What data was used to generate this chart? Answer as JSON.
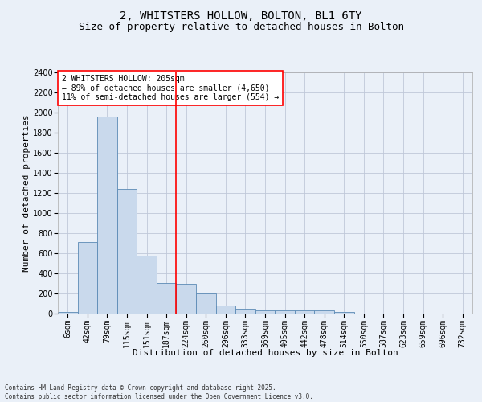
{
  "title1": "2, WHITSTERS HOLLOW, BOLTON, BL1 6TY",
  "title2": "Size of property relative to detached houses in Bolton",
  "xlabel": "Distribution of detached houses by size in Bolton",
  "ylabel": "Number of detached properties",
  "categories": [
    "6sqm",
    "42sqm",
    "79sqm",
    "115sqm",
    "151sqm",
    "187sqm",
    "224sqm",
    "260sqm",
    "296sqm",
    "333sqm",
    "369sqm",
    "405sqm",
    "442sqm",
    "478sqm",
    "514sqm",
    "550sqm",
    "587sqm",
    "623sqm",
    "659sqm",
    "696sqm",
    "732sqm"
  ],
  "values": [
    15,
    710,
    1960,
    1240,
    575,
    305,
    300,
    200,
    80,
    45,
    35,
    35,
    30,
    30,
    18,
    0,
    0,
    0,
    0,
    0,
    0
  ],
  "bar_color": "#c9d9ec",
  "bar_edge_color": "#5b8ab5",
  "grid_color": "#c0c8d8",
  "background_color": "#eaf0f8",
  "vline_x": 5.5,
  "vline_color": "red",
  "annotation_text": "2 WHITSTERS HOLLOW: 205sqm\n← 89% of detached houses are smaller (4,650)\n11% of semi-detached houses are larger (554) →",
  "annotation_box_color": "white",
  "annotation_box_edge": "red",
  "footnote": "Contains HM Land Registry data © Crown copyright and database right 2025.\nContains public sector information licensed under the Open Government Licence v3.0.",
  "ylim": [
    0,
    2400
  ],
  "yticks": [
    0,
    200,
    400,
    600,
    800,
    1000,
    1200,
    1400,
    1600,
    1800,
    2000,
    2200,
    2400
  ],
  "title1_fontsize": 10,
  "title2_fontsize": 9,
  "xlabel_fontsize": 8,
  "ylabel_fontsize": 8,
  "tick_fontsize": 7,
  "annotation_fontsize": 7,
  "footnote_fontsize": 5.5
}
